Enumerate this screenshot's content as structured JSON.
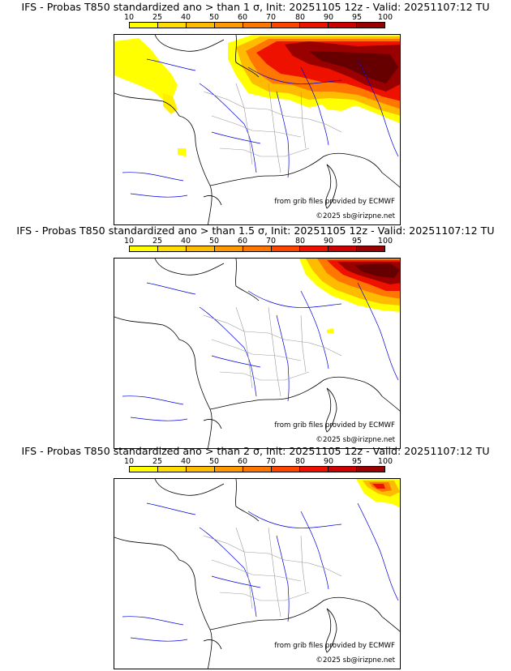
{
  "colorbar": {
    "ticks": [
      "10",
      "25",
      "40",
      "50",
      "60",
      "70",
      "80",
      "90",
      "95",
      "100"
    ],
    "colors": [
      "#ffff00",
      "#ffdd00",
      "#ffbb00",
      "#ff9900",
      "#ff7700",
      "#ff4400",
      "#ee1100",
      "#cc0000",
      "#990000",
      "#660000"
    ]
  },
  "credits": {
    "source": "from grib files provided by ECMWF",
    "copyright": "©2025 sb@irizpne.net"
  },
  "colors": {
    "coast": "#000000",
    "rivers": "#0000dd",
    "borders": "#999999"
  },
  "panels": [
    {
      "title": "IFS - Probas T850  standardized ano > than 1 σ, Init: 20251105 12z - Valid: 20251107:12 TU",
      "level": 1
    },
    {
      "title": "IFS - Probas T850  standardized ano > than 1.5 σ, Init: 20251105 12z - Valid: 20251107:12 TU",
      "level": 2
    },
    {
      "title": "IFS - Probas T850  standardized ano > than 2 σ, Init: 20251105 12z - Valid: 20251107:12 TU",
      "level": 3
    }
  ]
}
